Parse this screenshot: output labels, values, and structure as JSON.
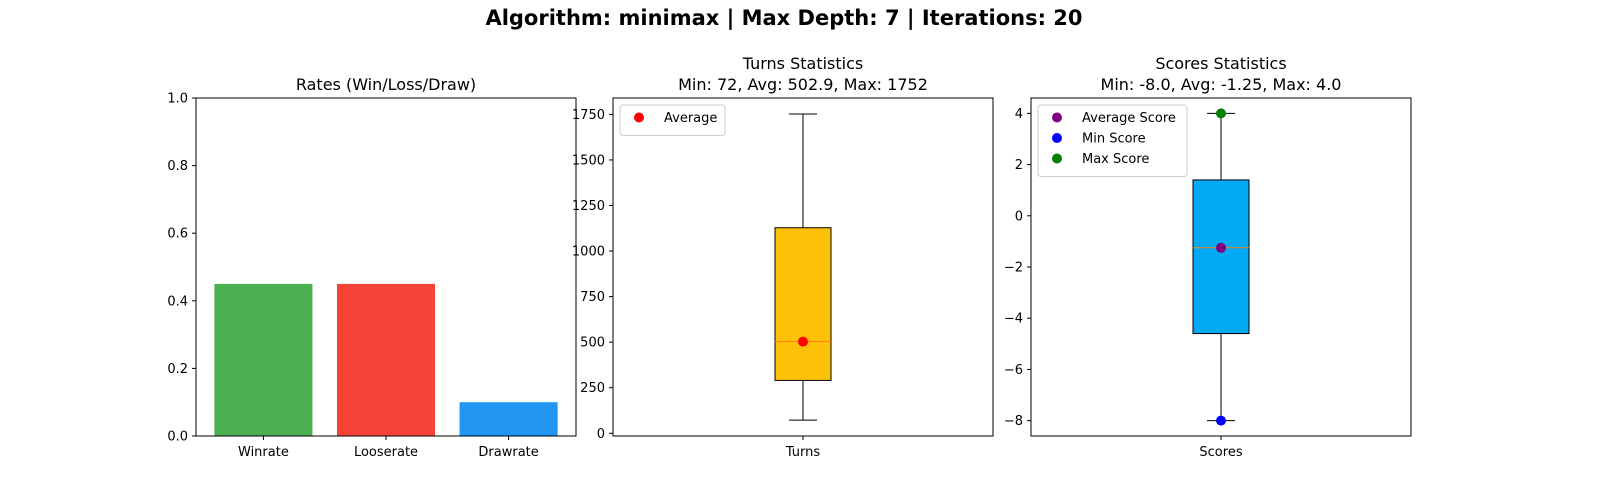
{
  "figure": {
    "title": "Algorithm: minimax | Max Depth: 7 | Iterations: 20"
  },
  "chart_data": [
    {
      "type": "bar",
      "title": "Rates (Win/Loss/Draw)",
      "categories": [
        "Winrate",
        "Looserate",
        "Drawrate"
      ],
      "values": [
        0.45,
        0.45,
        0.1
      ],
      "colors": [
        "#4caf50",
        "#f44336",
        "#2196f3"
      ],
      "ylim": [
        0,
        1.0
      ],
      "yticks": [
        "0.0",
        "0.2",
        "0.4",
        "0.6",
        "0.8",
        "1.0"
      ],
      "grid": false
    },
    {
      "type": "box",
      "title_line1": "Turns Statistics",
      "title_line2": "Min: 72, Avg: 502.9, Max: 1752",
      "category": "Turns",
      "box": {
        "min": 72,
        "q1": 290,
        "median": 502.9,
        "q3": 1128,
        "max": 1752
      },
      "box_color": "#ffc107",
      "markers": [
        {
          "name": "Average",
          "value": 502.9,
          "color": "#ff0000"
        }
      ],
      "ylim": [
        -15,
        1840
      ],
      "yticks": [
        "0",
        "250",
        "500",
        "750",
        "1000",
        "1250",
        "1500",
        "1750"
      ],
      "legend": "top-left",
      "grid": false
    },
    {
      "type": "box",
      "title_line1": "Scores Statistics",
      "title_line2": "Min: -8.0, Avg: -1.25, Max: 4.0",
      "category": "Scores",
      "box": {
        "min": -8.0,
        "q1": -4.6,
        "median": -1.25,
        "q3": 1.4,
        "max": 4.0
      },
      "box_color": "#03a9f4",
      "markers": [
        {
          "name": "Average Score",
          "value": -1.25,
          "color": "#800080"
        },
        {
          "name": "Min Score",
          "value": -8.0,
          "color": "#0000ff"
        },
        {
          "name": "Max Score",
          "value": 4.0,
          "color": "#008000"
        }
      ],
      "ylim": [
        -8.6,
        4.6
      ],
      "yticks": [
        "−8",
        "−6",
        "−4",
        "−2",
        "0",
        "2",
        "4"
      ],
      "legend": "top-left",
      "grid": false
    }
  ]
}
